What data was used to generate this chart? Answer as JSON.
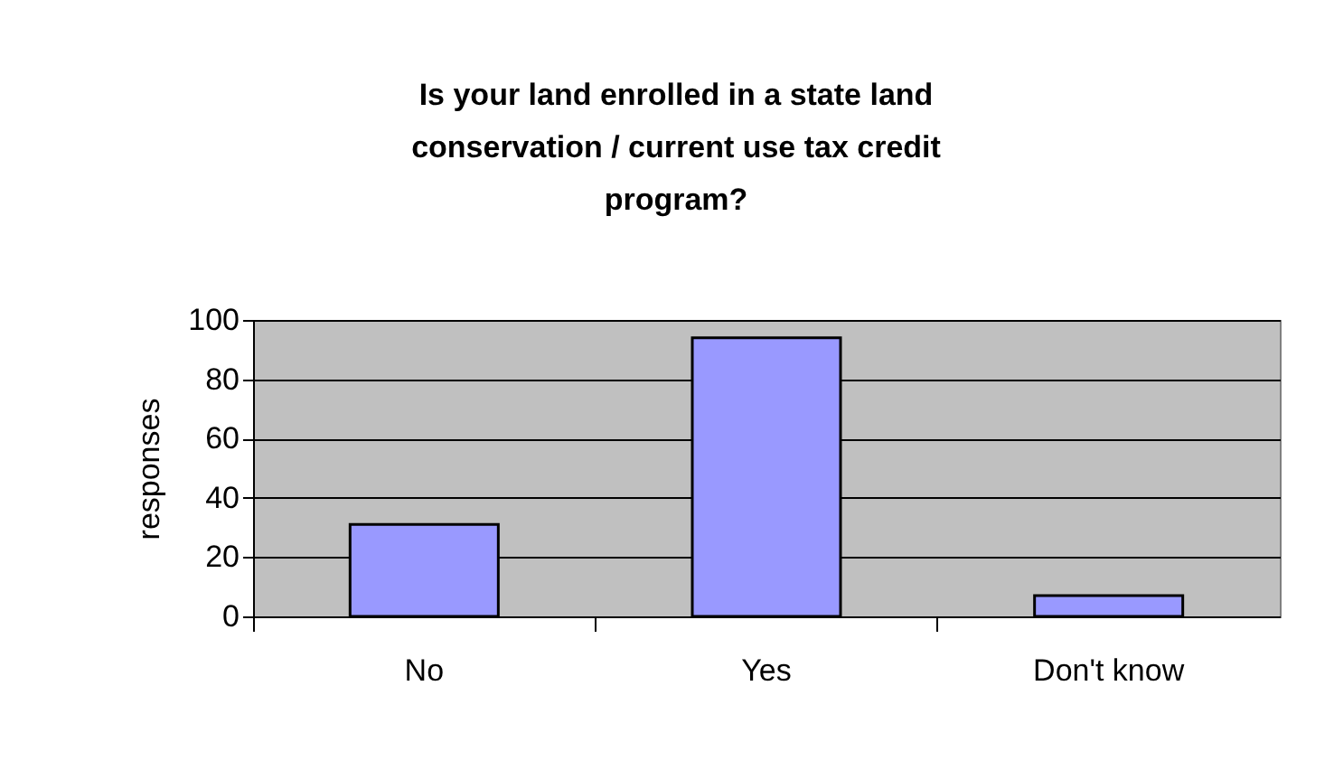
{
  "chart_data": {
    "type": "bar",
    "title": "Is your land enrolled in a state land conservation / current use tax credit program?",
    "ylabel": "responses",
    "categories": [
      "No",
      "Yes",
      "Don't know"
    ],
    "values": [
      31,
      94,
      7
    ],
    "color": "#9999ff",
    "ylim": [
      0,
      100
    ],
    "yticks": [
      0,
      20,
      40,
      60,
      80,
      100
    ],
    "grid": "y"
  }
}
